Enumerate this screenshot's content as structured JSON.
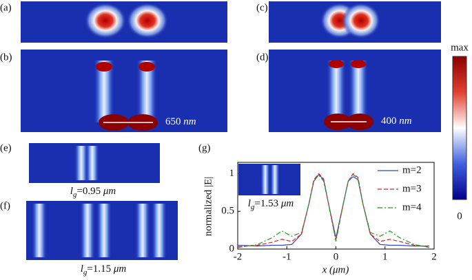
{
  "panel_labels": [
    "(a)",
    "(b)",
    "(c)",
    "(d)",
    "(e)",
    "(f)",
    "(g)"
  ],
  "spacing_labels": {
    "b": {
      "number": "650",
      "unit": "nm"
    },
    "d": {
      "number": "400",
      "unit": "nm"
    }
  },
  "colorbar": {
    "max": "max",
    "min": "0"
  },
  "length_labels": {
    "e": {
      "symbol": "l",
      "sub": "g",
      "rest": "=0.95 ",
      "unit": "μm"
    },
    "f": {
      "symbol": "l",
      "sub": "g",
      "rest": "=1.15 ",
      "unit": "μm"
    },
    "g": {
      "symbol": "l",
      "sub": "g",
      "rest": "=1.53 ",
      "unit": "μm"
    }
  },
  "chart_data": {
    "type": "line",
    "y_label": "normalized |E|",
    "x_label": "x (μm)",
    "x": [
      -2,
      -1.6,
      -1.3,
      -1.1,
      -0.9,
      -0.7,
      -0.55,
      -0.45,
      -0.35,
      -0.25,
      -0.15,
      0,
      0.15,
      0.25,
      0.35,
      0.45,
      0.55,
      0.7,
      0.9,
      1.1,
      1.3,
      1.6,
      1.9
    ],
    "series": [
      {
        "name": "m=2",
        "color": "#3344cc",
        "style": "solid",
        "values": [
          0.05,
          0.04,
          0.05,
          0.05,
          0.06,
          0.2,
          0.6,
          0.9,
          0.99,
          0.92,
          0.6,
          0.15,
          0.6,
          0.9,
          0.96,
          0.92,
          0.6,
          0.2,
          0.06,
          0.05,
          0.05,
          0.04,
          0.04
        ]
      },
      {
        "name": "m=3",
        "color": "#dd2222",
        "style": "dashed",
        "values": [
          0.03,
          0.05,
          0.09,
          0.13,
          0.1,
          0.2,
          0.6,
          0.92,
          1.0,
          0.93,
          0.6,
          0.12,
          0.6,
          0.9,
          1.0,
          0.95,
          0.6,
          0.2,
          0.1,
          0.13,
          0.1,
          0.05,
          0.03
        ]
      },
      {
        "name": "m=4",
        "color": "#229922",
        "style": "dashdot",
        "values": [
          0.02,
          0.06,
          0.15,
          0.24,
          0.17,
          0.22,
          0.6,
          0.9,
          0.98,
          0.9,
          0.6,
          0.1,
          0.6,
          0.9,
          0.99,
          0.93,
          0.6,
          0.22,
          0.17,
          0.24,
          0.15,
          0.06,
          0.02
        ]
      }
    ],
    "xlim": [
      -2,
      2
    ],
    "ylim": [
      0,
      1.15
    ],
    "xticks": [
      -2,
      -1,
      0,
      1,
      2
    ],
    "yticks": [
      0,
      0.5,
      1
    ],
    "legend": "upper-right"
  }
}
